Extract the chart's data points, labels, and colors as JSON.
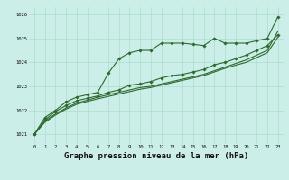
{
  "background_color": "#cceee8",
  "grid_color": "#aaddcc",
  "line_color": "#2d6a2d",
  "marker_color": "#2d6a2d",
  "title": "Graphe pression niveau de la mer (hPa)",
  "title_fontsize": 6.5,
  "xlim": [
    -0.5,
    23.5
  ],
  "ylim": [
    1020.6,
    1026.3
  ],
  "yticks": [
    1021,
    1022,
    1023,
    1024,
    1025,
    1026
  ],
  "xticks": [
    0,
    1,
    2,
    3,
    4,
    5,
    6,
    7,
    8,
    9,
    10,
    11,
    12,
    13,
    14,
    15,
    16,
    17,
    18,
    19,
    20,
    21,
    22,
    23
  ],
  "series1_x": [
    0,
    1,
    2,
    3,
    4,
    5,
    6,
    7,
    8,
    9,
    10,
    11,
    12,
    13,
    14,
    15,
    16,
    17,
    18,
    19,
    20,
    21,
    22,
    23
  ],
  "series1_y": [
    1021.0,
    1021.7,
    1022.0,
    1022.35,
    1022.55,
    1022.65,
    1022.75,
    1023.55,
    1024.15,
    1024.4,
    1024.5,
    1024.5,
    1024.8,
    1024.8,
    1024.8,
    1024.75,
    1024.7,
    1025.0,
    1024.8,
    1024.8,
    1024.8,
    1024.9,
    1025.0,
    1025.9
  ],
  "series2_x": [
    0,
    1,
    2,
    3,
    4,
    5,
    6,
    7,
    8,
    9,
    10,
    11,
    12,
    13,
    14,
    15,
    16,
    17,
    18,
    19,
    20,
    21,
    22,
    23
  ],
  "series2_y": [
    1021.0,
    1021.6,
    1021.95,
    1022.2,
    1022.4,
    1022.5,
    1022.6,
    1022.75,
    1022.85,
    1023.05,
    1023.1,
    1023.2,
    1023.35,
    1023.45,
    1023.5,
    1023.6,
    1023.7,
    1023.9,
    1024.0,
    1024.15,
    1024.3,
    1024.5,
    1024.7,
    1025.15
  ],
  "series3_x": [
    0,
    1,
    2,
    3,
    4,
    5,
    6,
    7,
    8,
    9,
    10,
    11,
    12,
    13,
    14,
    15,
    16,
    17,
    18,
    19,
    20,
    21,
    22,
    23
  ],
  "series3_y": [
    1021.0,
    1021.55,
    1021.85,
    1022.1,
    1022.3,
    1022.42,
    1022.55,
    1022.65,
    1022.75,
    1022.85,
    1022.95,
    1023.0,
    1023.1,
    1023.2,
    1023.3,
    1023.4,
    1023.5,
    1023.65,
    1023.8,
    1023.95,
    1024.1,
    1024.3,
    1024.5,
    1025.3
  ],
  "series4_x": [
    0,
    1,
    2,
    3,
    4,
    5,
    6,
    7,
    8,
    9,
    10,
    11,
    12,
    13,
    14,
    15,
    16,
    17,
    18,
    19,
    20,
    21,
    22,
    23
  ],
  "series4_y": [
    1021.0,
    1021.5,
    1021.8,
    1022.05,
    1022.25,
    1022.37,
    1022.48,
    1022.58,
    1022.68,
    1022.78,
    1022.88,
    1022.95,
    1023.05,
    1023.15,
    1023.25,
    1023.35,
    1023.45,
    1023.6,
    1023.75,
    1023.88,
    1024.0,
    1024.2,
    1024.4,
    1025.05
  ]
}
